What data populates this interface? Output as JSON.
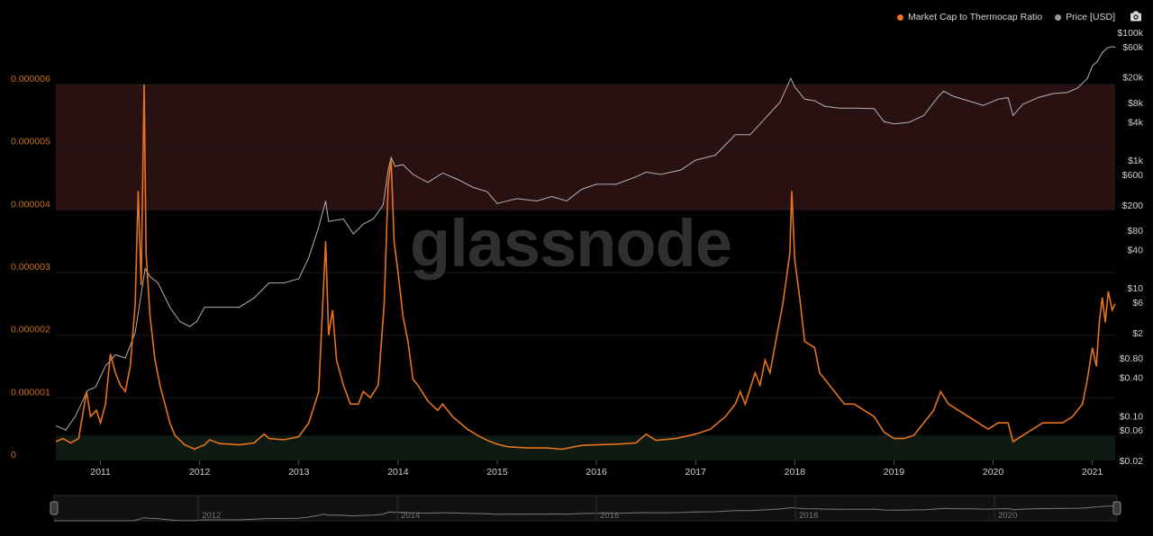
{
  "legend": {
    "items": [
      {
        "label": "Market Cap to Thermocap Ratio",
        "color": "#e8731d"
      },
      {
        "label": "Price [USD]",
        "color": "#9a9a9a"
      }
    ]
  },
  "watermark": "glassnode",
  "colors": {
    "ratio": "#e8731d",
    "price": "#cfcfcf",
    "upper_band": "#2a1111",
    "lower_band": "#0e1a12",
    "grid": "#1c1c1c",
    "left_axis_text": "#c8701f",
    "right_axis_text": "#cfcfcf",
    "x_axis_text": "#cfcfcf"
  },
  "chart_data": {
    "type": "line",
    "title": "",
    "xlabel": "",
    "ylabel": "",
    "x_range": [
      2010.55,
      2021.23
    ],
    "y_left": {
      "range": [
        0,
        6e-06
      ],
      "ticks": [
        {
          "value": 0,
          "label": "0"
        },
        {
          "value": 1e-06,
          "label": "0.000001"
        },
        {
          "value": 2e-06,
          "label": "0.000002"
        },
        {
          "value": 3e-06,
          "label": "0.000003"
        },
        {
          "value": 4e-06,
          "label": "0.000004"
        },
        {
          "value": 5e-06,
          "label": "0.000005"
        },
        {
          "value": 6e-06,
          "label": "0.000006"
        }
      ]
    },
    "y_right": {
      "scale": "log",
      "range": [
        0.02,
        100000
      ],
      "ticks": [
        {
          "value": 100000,
          "label": "$100k"
        },
        {
          "value": 60000,
          "label": "$60k"
        },
        {
          "value": 20000,
          "label": "$20k"
        },
        {
          "value": 8000,
          "label": "$8k"
        },
        {
          "value": 4000,
          "label": "$4k"
        },
        {
          "value": 1000,
          "label": "$1k"
        },
        {
          "value": 600,
          "label": "$600"
        },
        {
          "value": 200,
          "label": "$200"
        },
        {
          "value": 80,
          "label": "$80"
        },
        {
          "value": 40,
          "label": "$40"
        },
        {
          "value": 10,
          "label": "$10"
        },
        {
          "value": 6,
          "label": "$6"
        },
        {
          "value": 2,
          "label": "$2"
        },
        {
          "value": 0.8,
          "label": "$0.80"
        },
        {
          "value": 0.4,
          "label": "$0.40"
        },
        {
          "value": 0.1,
          "label": "$0.10"
        },
        {
          "value": 0.06,
          "label": "$0.06"
        },
        {
          "value": 0.02,
          "label": "$0.02"
        }
      ]
    },
    "x_ticks": [
      {
        "value": 2011,
        "label": "2011"
      },
      {
        "value": 2012,
        "label": "2012"
      },
      {
        "value": 2013,
        "label": "2013"
      },
      {
        "value": 2014,
        "label": "2014"
      },
      {
        "value": 2015,
        "label": "2015"
      },
      {
        "value": 2016,
        "label": "2016"
      },
      {
        "value": 2017,
        "label": "2017"
      },
      {
        "value": 2018,
        "label": "2018"
      },
      {
        "value": 2019,
        "label": "2019"
      },
      {
        "value": 2020,
        "label": "2020"
      },
      {
        "value": 2021,
        "label": "2021"
      }
    ],
    "bands": [
      {
        "name": "upper",
        "from": 4e-06,
        "to": 6e-06
      },
      {
        "name": "lower",
        "from": 0,
        "to": 4e-07
      }
    ],
    "series": [
      {
        "name": "Market Cap to Thermocap Ratio",
        "axis": "left",
        "points": [
          [
            2010.55,
            3e-07
          ],
          [
            2010.62,
            3.5e-07
          ],
          [
            2010.7,
            2.8e-07
          ],
          [
            2010.78,
            3.5e-07
          ],
          [
            2010.86,
            1.1e-06
          ],
          [
            2010.9,
            7e-07
          ],
          [
            2010.96,
            8e-07
          ],
          [
            2011.0,
            6e-07
          ],
          [
            2011.05,
            9e-07
          ],
          [
            2011.1,
            1.7e-06
          ],
          [
            2011.15,
            1.4e-06
          ],
          [
            2011.2,
            1.2e-06
          ],
          [
            2011.25,
            1.1e-06
          ],
          [
            2011.3,
            1.5e-06
          ],
          [
            2011.35,
            2.5e-06
          ],
          [
            2011.38,
            4.3e-06
          ],
          [
            2011.41,
            2.8e-06
          ],
          [
            2011.44,
            6e-06
          ],
          [
            2011.46,
            3.3e-06
          ],
          [
            2011.5,
            2.3e-06
          ],
          [
            2011.55,
            1.6e-06
          ],
          [
            2011.6,
            1.2e-06
          ],
          [
            2011.65,
            9e-07
          ],
          [
            2011.7,
            6e-07
          ],
          [
            2011.75,
            4e-07
          ],
          [
            2011.85,
            2.5e-07
          ],
          [
            2011.95,
            1.8e-07
          ],
          [
            2012.0,
            2.2e-07
          ],
          [
            2012.05,
            2.5e-07
          ],
          [
            2012.1,
            3.3e-07
          ],
          [
            2012.2,
            2.7e-07
          ],
          [
            2012.4,
            2.5e-07
          ],
          [
            2012.55,
            2.8e-07
          ],
          [
            2012.65,
            4.2e-07
          ],
          [
            2012.7,
            3.5e-07
          ],
          [
            2012.85,
            3.3e-07
          ],
          [
            2013.0,
            3.8e-07
          ],
          [
            2013.1,
            6e-07
          ],
          [
            2013.2,
            1.1e-06
          ],
          [
            2013.27,
            3.5e-06
          ],
          [
            2013.3,
            2e-06
          ],
          [
            2013.34,
            2.4e-06
          ],
          [
            2013.38,
            1.6e-06
          ],
          [
            2013.45,
            1.2e-06
          ],
          [
            2013.52,
            9e-07
          ],
          [
            2013.6,
            9e-07
          ],
          [
            2013.65,
            1.1e-06
          ],
          [
            2013.72,
            1e-06
          ],
          [
            2013.8,
            1.2e-06
          ],
          [
            2013.86,
            2.5e-06
          ],
          [
            2013.9,
            4.4e-06
          ],
          [
            2013.93,
            4.8e-06
          ],
          [
            2013.96,
            3.5e-06
          ],
          [
            2014.0,
            3e-06
          ],
          [
            2014.05,
            2.3e-06
          ],
          [
            2014.1,
            1.9e-06
          ],
          [
            2014.15,
            1.3e-06
          ],
          [
            2014.2,
            1.2e-06
          ],
          [
            2014.3,
            9.5e-07
          ],
          [
            2014.4,
            8e-07
          ],
          [
            2014.45,
            9e-07
          ],
          [
            2014.55,
            7e-07
          ],
          [
            2014.7,
            5e-07
          ],
          [
            2014.8,
            4e-07
          ],
          [
            2014.9,
            3.2e-07
          ],
          [
            2015.0,
            2.6e-07
          ],
          [
            2015.1,
            2.2e-07
          ],
          [
            2015.3,
            2e-07
          ],
          [
            2015.5,
            2e-07
          ],
          [
            2015.65,
            1.8e-07
          ],
          [
            2015.85,
            2.4e-07
          ],
          [
            2016.0,
            2.5e-07
          ],
          [
            2016.2,
            2.6e-07
          ],
          [
            2016.4,
            2.8e-07
          ],
          [
            2016.5,
            4.2e-07
          ],
          [
            2016.6,
            3.2e-07
          ],
          [
            2016.8,
            3.5e-07
          ],
          [
            2017.0,
            4.2e-07
          ],
          [
            2017.15,
            5e-07
          ],
          [
            2017.3,
            7e-07
          ],
          [
            2017.4,
            9e-07
          ],
          [
            2017.45,
            1.1e-06
          ],
          [
            2017.5,
            9e-07
          ],
          [
            2017.6,
            1.4e-06
          ],
          [
            2017.65,
            1.2e-06
          ],
          [
            2017.7,
            1.6e-06
          ],
          [
            2017.75,
            1.4e-06
          ],
          [
            2017.82,
            2e-06
          ],
          [
            2017.88,
            2.5e-06
          ],
          [
            2017.95,
            3.3e-06
          ],
          [
            2017.97,
            4.3e-06
          ],
          [
            2018.0,
            3.2e-06
          ],
          [
            2018.05,
            2.6e-06
          ],
          [
            2018.1,
            1.9e-06
          ],
          [
            2018.2,
            1.8e-06
          ],
          [
            2018.25,
            1.4e-06
          ],
          [
            2018.3,
            1.3e-06
          ],
          [
            2018.4,
            1.1e-06
          ],
          [
            2018.5,
            9e-07
          ],
          [
            2018.6,
            9e-07
          ],
          [
            2018.7,
            8e-07
          ],
          [
            2018.8,
            7e-07
          ],
          [
            2018.9,
            4.5e-07
          ],
          [
            2019.0,
            3.5e-07
          ],
          [
            2019.1,
            3.5e-07
          ],
          [
            2019.2,
            4e-07
          ],
          [
            2019.3,
            6e-07
          ],
          [
            2019.4,
            8e-07
          ],
          [
            2019.47,
            1.1e-06
          ],
          [
            2019.55,
            9e-07
          ],
          [
            2019.65,
            8e-07
          ],
          [
            2019.75,
            7e-07
          ],
          [
            2019.85,
            6e-07
          ],
          [
            2019.95,
            5e-07
          ],
          [
            2020.05,
            6e-07
          ],
          [
            2020.15,
            6e-07
          ],
          [
            2020.2,
            3e-07
          ],
          [
            2020.3,
            4e-07
          ],
          [
            2020.4,
            5e-07
          ],
          [
            2020.5,
            6e-07
          ],
          [
            2020.6,
            6e-07
          ],
          [
            2020.7,
            6e-07
          ],
          [
            2020.8,
            7e-07
          ],
          [
            2020.9,
            9e-07
          ],
          [
            2020.95,
            1.3e-06
          ],
          [
            2021.0,
            1.8e-06
          ],
          [
            2021.04,
            1.5e-06
          ],
          [
            2021.07,
            2.2e-06
          ],
          [
            2021.1,
            2.6e-06
          ],
          [
            2021.13,
            2.2e-06
          ],
          [
            2021.16,
            2.7e-06
          ],
          [
            2021.2,
            2.4e-06
          ],
          [
            2021.23,
            2.5e-06
          ]
        ]
      },
      {
        "name": "Price [USD]",
        "axis": "right",
        "points": [
          [
            2010.55,
            0.07
          ],
          [
            2010.65,
            0.06
          ],
          [
            2010.75,
            0.1
          ],
          [
            2010.87,
            0.25
          ],
          [
            2010.95,
            0.28
          ],
          [
            2011.05,
            0.6
          ],
          [
            2011.15,
            0.9
          ],
          [
            2011.25,
            0.8
          ],
          [
            2011.35,
            2
          ],
          [
            2011.41,
            8
          ],
          [
            2011.45,
            20
          ],
          [
            2011.5,
            15
          ],
          [
            2011.58,
            12
          ],
          [
            2011.7,
            5
          ],
          [
            2011.8,
            3
          ],
          [
            2011.9,
            2.5
          ],
          [
            2011.97,
            3
          ],
          [
            2012.05,
            5
          ],
          [
            2012.2,
            5
          ],
          [
            2012.4,
            5
          ],
          [
            2012.55,
            7
          ],
          [
            2012.7,
            12
          ],
          [
            2012.85,
            12
          ],
          [
            2013.0,
            14
          ],
          [
            2013.1,
            30
          ],
          [
            2013.2,
            90
          ],
          [
            2013.27,
            230
          ],
          [
            2013.3,
            110
          ],
          [
            2013.45,
            120
          ],
          [
            2013.55,
            70
          ],
          [
            2013.65,
            100
          ],
          [
            2013.75,
            120
          ],
          [
            2013.85,
            200
          ],
          [
            2013.9,
            700
          ],
          [
            2013.93,
            1100
          ],
          [
            2013.97,
            800
          ],
          [
            2014.05,
            850
          ],
          [
            2014.15,
            600
          ],
          [
            2014.3,
            450
          ],
          [
            2014.45,
            630
          ],
          [
            2014.6,
            500
          ],
          [
            2014.75,
            380
          ],
          [
            2014.9,
            320
          ],
          [
            2015.0,
            210
          ],
          [
            2015.05,
            220
          ],
          [
            2015.2,
            250
          ],
          [
            2015.4,
            230
          ],
          [
            2015.55,
            270
          ],
          [
            2015.7,
            230
          ],
          [
            2015.85,
            350
          ],
          [
            2016.0,
            420
          ],
          [
            2016.2,
            420
          ],
          [
            2016.4,
            550
          ],
          [
            2016.5,
            650
          ],
          [
            2016.65,
            600
          ],
          [
            2016.85,
            700
          ],
          [
            2017.0,
            1000
          ],
          [
            2017.2,
            1200
          ],
          [
            2017.4,
            2500
          ],
          [
            2017.55,
            2500
          ],
          [
            2017.7,
            4500
          ],
          [
            2017.85,
            8000
          ],
          [
            2017.96,
            19000
          ],
          [
            2018.0,
            14000
          ],
          [
            2018.1,
            9000
          ],
          [
            2018.2,
            8500
          ],
          [
            2018.3,
            7000
          ],
          [
            2018.45,
            6500
          ],
          [
            2018.6,
            6500
          ],
          [
            2018.8,
            6400
          ],
          [
            2018.9,
            4000
          ],
          [
            2019.0,
            3700
          ],
          [
            2019.15,
            3900
          ],
          [
            2019.3,
            5000
          ],
          [
            2019.45,
            10000
          ],
          [
            2019.5,
            12000
          ],
          [
            2019.6,
            10000
          ],
          [
            2019.75,
            8500
          ],
          [
            2019.9,
            7200
          ],
          [
            2020.05,
            9000
          ],
          [
            2020.15,
            9500
          ],
          [
            2020.2,
            5000
          ],
          [
            2020.3,
            7500
          ],
          [
            2020.45,
            9500
          ],
          [
            2020.6,
            11000
          ],
          [
            2020.75,
            11500
          ],
          [
            2020.85,
            13500
          ],
          [
            2020.95,
            19000
          ],
          [
            2021.0,
            30000
          ],
          [
            2021.05,
            35000
          ],
          [
            2021.1,
            48000
          ],
          [
            2021.15,
            57000
          ],
          [
            2021.2,
            60000
          ],
          [
            2021.23,
            58000
          ]
        ]
      }
    ]
  },
  "navigator": {
    "labels": [
      "2012",
      "2014",
      "2016",
      "2018",
      "2020"
    ]
  }
}
